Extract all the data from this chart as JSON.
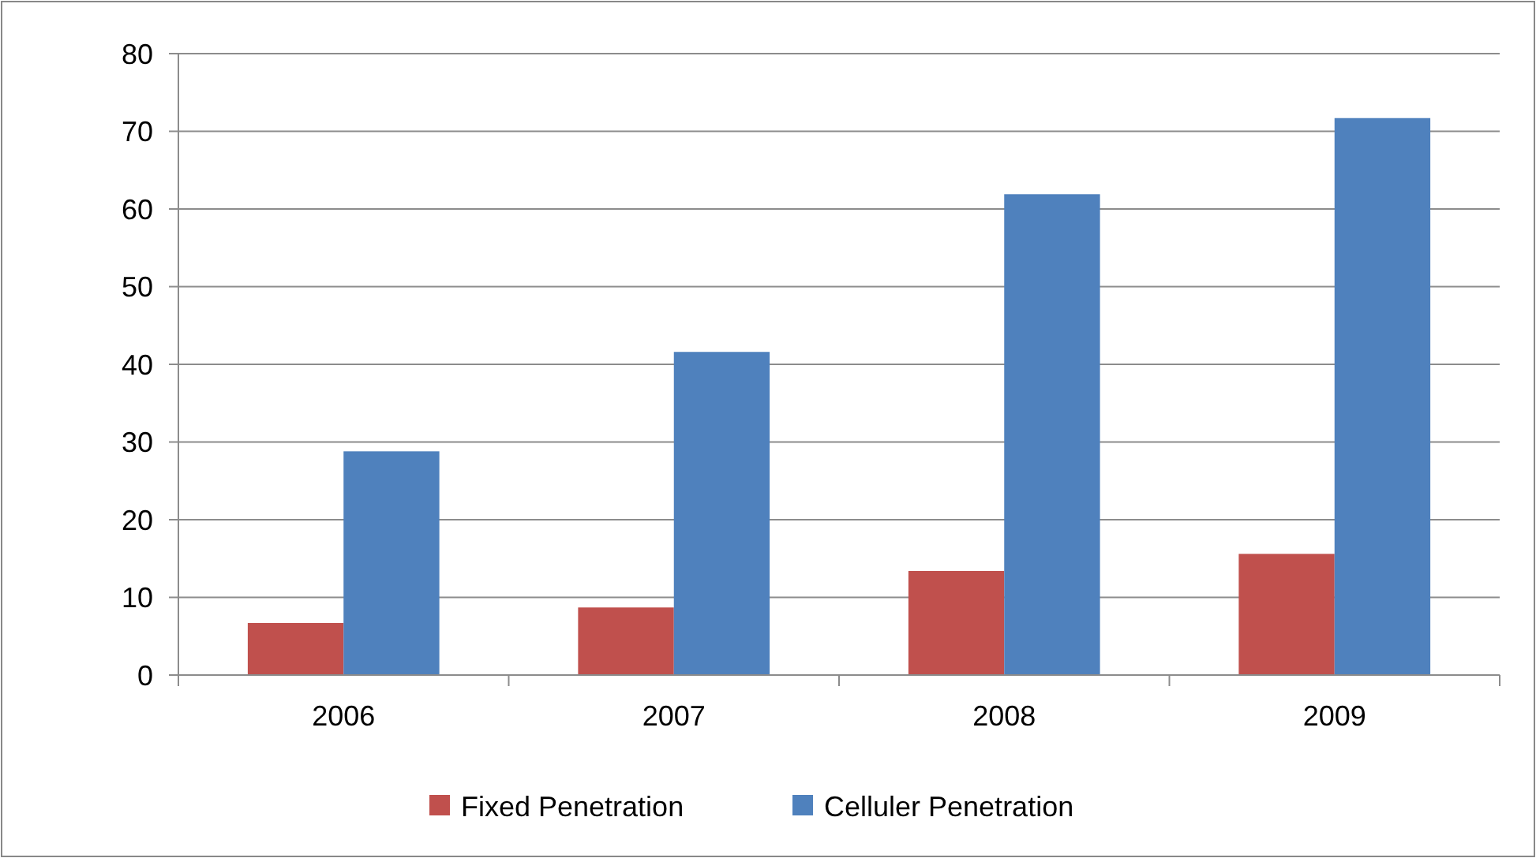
{
  "chart_data": {
    "type": "bar",
    "categories": [
      "2006",
      "2007",
      "2008",
      "2009"
    ],
    "series": [
      {
        "name": "Fixed Penetration",
        "color": "#c0504d",
        "values": [
          6.7,
          8.7,
          13.4,
          15.6
        ]
      },
      {
        "name": "Celluler Penetration",
        "color": "#4f81bd",
        "values": [
          28.8,
          41.6,
          61.9,
          71.7
        ]
      }
    ],
    "ylim": [
      0,
      80
    ],
    "yticks": [
      0,
      10,
      20,
      30,
      40,
      50,
      60,
      70,
      80
    ],
    "grid": "y",
    "legend": "bottom"
  }
}
